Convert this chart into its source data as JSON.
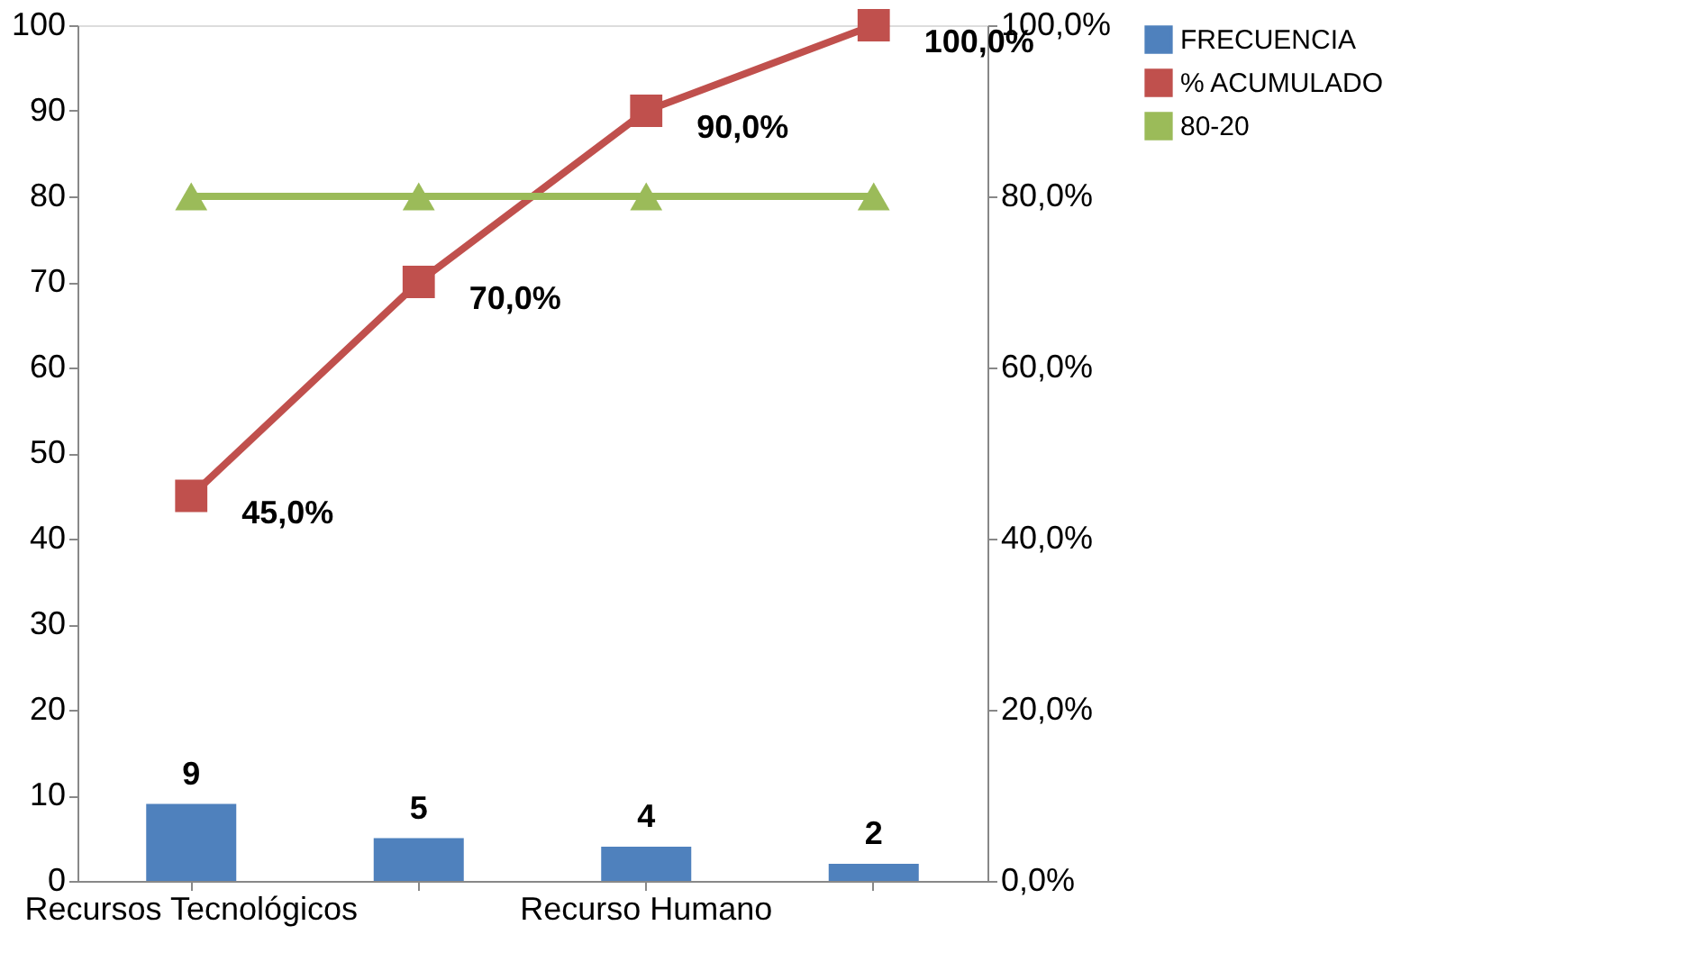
{
  "chart_data": {
    "type": "bar",
    "categories": [
      "Recursos Tecnológicos",
      null,
      "Recurso Humano",
      null
    ],
    "ylim": [
      0,
      100
    ],
    "yticks": [
      0,
      10,
      20,
      30,
      40,
      50,
      60,
      70,
      80,
      90,
      100
    ],
    "y2lim": [
      0,
      100
    ],
    "y2ticks": [
      {
        "value": 0,
        "label": "0,0%"
      },
      {
        "value": 20,
        "label": "20,0%"
      },
      {
        "value": 40,
        "label": "40,0%"
      },
      {
        "value": 60,
        "label": "60,0%"
      },
      {
        "value": 80,
        "label": "80,0%"
      },
      {
        "value": 100,
        "label": "100,0%"
      }
    ],
    "grid": false,
    "legend": "right",
    "series": [
      {
        "name": "FRECUENCIA",
        "color": "#4f81bd",
        "values": [
          9,
          5,
          4,
          2
        ],
        "value_labels": [
          "9",
          "5",
          "4",
          "2"
        ]
      },
      {
        "name": "% ACUMULADO",
        "type": "line",
        "axis": "y2",
        "color": "#c0504d",
        "marker": "square",
        "values": [
          45,
          70,
          90,
          100
        ],
        "value_labels": [
          "45,0%",
          "70,0%",
          "90,0%",
          "100,0%"
        ]
      },
      {
        "name": "80-20",
        "type": "line",
        "axis": "y2",
        "color": "#9bbb59",
        "marker": "triangle",
        "values": [
          80,
          80,
          80,
          80
        ]
      }
    ]
  }
}
